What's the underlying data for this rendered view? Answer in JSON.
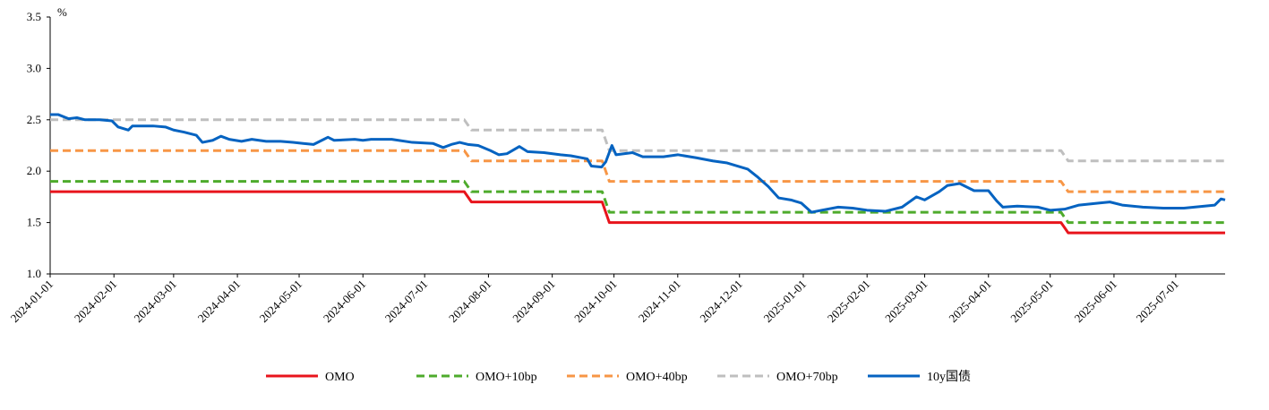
{
  "chart_data": {
    "type": "line",
    "ylabel": "%",
    "ylim": [
      1.0,
      3.5
    ],
    "yticks": [
      "1.0",
      "1.5",
      "2.0",
      "2.5",
      "3.0",
      "3.5"
    ],
    "xlim": [
      "2024-01-01",
      "2025-07-25"
    ],
    "xticks": [
      "2024-01-01",
      "2024-02-01",
      "2024-03-01",
      "2024-04-01",
      "2024-05-01",
      "2024-06-01",
      "2024-07-01",
      "2024-08-01",
      "2024-09-01",
      "2024-10-01",
      "2024-11-01",
      "2024-12-01",
      "2025-01-01",
      "2025-02-01",
      "2025-03-01",
      "2025-04-01",
      "2025-05-01",
      "2025-06-01",
      "2025-07-01"
    ],
    "grid": false,
    "legend": "bottom",
    "series": [
      {
        "name": "OMO",
        "color": "#e8141c",
        "style": "solid",
        "steps": [
          [
            "2024-01-01",
            1.8
          ],
          [
            "2024-07-22",
            1.7
          ],
          [
            "2024-09-27",
            1.5
          ],
          [
            "2025-05-08",
            1.4
          ],
          [
            "2025-07-25",
            1.4
          ]
        ]
      },
      {
        "name": "OMO+10bp",
        "color": "#4eab2c",
        "style": "dashed",
        "steps": [
          [
            "2024-01-01",
            1.9
          ],
          [
            "2024-07-22",
            1.8
          ],
          [
            "2024-09-27",
            1.6
          ],
          [
            "2025-05-08",
            1.5
          ],
          [
            "2025-07-25",
            1.5
          ]
        ]
      },
      {
        "name": "OMO+40bp",
        "color": "#f79646",
        "style": "dashed",
        "steps": [
          [
            "2024-01-01",
            2.2
          ],
          [
            "2024-07-22",
            2.1
          ],
          [
            "2024-09-27",
            1.9
          ],
          [
            "2025-05-08",
            1.8
          ],
          [
            "2025-07-25",
            1.8
          ]
        ]
      },
      {
        "name": "OMO+70bp",
        "color": "#bfbfbf",
        "style": "dashed",
        "steps": [
          [
            "2024-01-01",
            2.5
          ],
          [
            "2024-07-22",
            2.4
          ],
          [
            "2024-09-27",
            2.2
          ],
          [
            "2025-05-08",
            2.1
          ],
          [
            "2025-07-25",
            2.1
          ]
        ]
      },
      {
        "name": "10y国债",
        "color": "#0563c1",
        "style": "solid",
        "points": [
          [
            "2024-01-01",
            2.55
          ],
          [
            "2024-01-05",
            2.55
          ],
          [
            "2024-01-10",
            2.51
          ],
          [
            "2024-01-14",
            2.52
          ],
          [
            "2024-01-18",
            2.5
          ],
          [
            "2024-01-25",
            2.5
          ],
          [
            "2024-01-31",
            2.49
          ],
          [
            "2024-02-03",
            2.43
          ],
          [
            "2024-02-08",
            2.4
          ],
          [
            "2024-02-10",
            2.44
          ],
          [
            "2024-02-20",
            2.44
          ],
          [
            "2024-02-26",
            2.43
          ],
          [
            "2024-03-01",
            2.4
          ],
          [
            "2024-03-06",
            2.38
          ],
          [
            "2024-03-12",
            2.35
          ],
          [
            "2024-03-15",
            2.28
          ],
          [
            "2024-03-20",
            2.3
          ],
          [
            "2024-03-24",
            2.34
          ],
          [
            "2024-03-28",
            2.31
          ],
          [
            "2024-04-03",
            2.29
          ],
          [
            "2024-04-08",
            2.31
          ],
          [
            "2024-04-15",
            2.29
          ],
          [
            "2024-04-22",
            2.29
          ],
          [
            "2024-04-28",
            2.28
          ],
          [
            "2024-05-03",
            2.27
          ],
          [
            "2024-05-08",
            2.26
          ],
          [
            "2024-05-13",
            2.31
          ],
          [
            "2024-05-15",
            2.33
          ],
          [
            "2024-05-18",
            2.3
          ],
          [
            "2024-05-28",
            2.31
          ],
          [
            "2024-06-01",
            2.3
          ],
          [
            "2024-06-05",
            2.31
          ],
          [
            "2024-06-15",
            2.31
          ],
          [
            "2024-06-25",
            2.28
          ],
          [
            "2024-07-05",
            2.27
          ],
          [
            "2024-07-10",
            2.23
          ],
          [
            "2024-07-14",
            2.26
          ],
          [
            "2024-07-18",
            2.28
          ],
          [
            "2024-07-22",
            2.26
          ],
          [
            "2024-07-27",
            2.25
          ],
          [
            "2024-08-02",
            2.2
          ],
          [
            "2024-08-06",
            2.16
          ],
          [
            "2024-08-10",
            2.17
          ],
          [
            "2024-08-16",
            2.24
          ],
          [
            "2024-08-20",
            2.19
          ],
          [
            "2024-08-28",
            2.18
          ],
          [
            "2024-09-05",
            2.16
          ],
          [
            "2024-09-10",
            2.15
          ],
          [
            "2024-09-18",
            2.12
          ],
          [
            "2024-09-20",
            2.05
          ],
          [
            "2024-09-25",
            2.04
          ],
          [
            "2024-09-27",
            2.09
          ],
          [
            "2024-09-30",
            2.25
          ],
          [
            "2024-10-02",
            2.16
          ],
          [
            "2024-10-10",
            2.18
          ],
          [
            "2024-10-15",
            2.14
          ],
          [
            "2024-10-25",
            2.14
          ],
          [
            "2024-11-01",
            2.16
          ],
          [
            "2024-11-10",
            2.13
          ],
          [
            "2024-11-18",
            2.1
          ],
          [
            "2024-11-25",
            2.08
          ],
          [
            "2024-12-05",
            2.02
          ],
          [
            "2024-12-10",
            1.94
          ],
          [
            "2024-12-15",
            1.85
          ],
          [
            "2024-12-20",
            1.74
          ],
          [
            "2024-12-26",
            1.72
          ],
          [
            "2024-12-31",
            1.69
          ],
          [
            "2025-01-05",
            1.6
          ],
          [
            "2025-01-10",
            1.62
          ],
          [
            "2025-01-18",
            1.65
          ],
          [
            "2025-01-25",
            1.64
          ],
          [
            "2025-02-01",
            1.62
          ],
          [
            "2025-02-10",
            1.61
          ],
          [
            "2025-02-18",
            1.65
          ],
          [
            "2025-02-25",
            1.75
          ],
          [
            "2025-03-01",
            1.72
          ],
          [
            "2025-03-08",
            1.8
          ],
          [
            "2025-03-12",
            1.86
          ],
          [
            "2025-03-18",
            1.88
          ],
          [
            "2025-03-25",
            1.81
          ],
          [
            "2025-04-01",
            1.81
          ],
          [
            "2025-04-05",
            1.71
          ],
          [
            "2025-04-08",
            1.65
          ],
          [
            "2025-04-15",
            1.66
          ],
          [
            "2025-04-25",
            1.65
          ],
          [
            "2025-05-01",
            1.62
          ],
          [
            "2025-05-08",
            1.63
          ],
          [
            "2025-05-15",
            1.67
          ],
          [
            "2025-05-25",
            1.69
          ],
          [
            "2025-05-30",
            1.7
          ],
          [
            "2025-06-05",
            1.67
          ],
          [
            "2025-06-15",
            1.65
          ],
          [
            "2025-06-25",
            1.64
          ],
          [
            "2025-07-05",
            1.64
          ],
          [
            "2025-07-15",
            1.66
          ],
          [
            "2025-07-20",
            1.67
          ],
          [
            "2025-07-23",
            1.73
          ],
          [
            "2025-07-25",
            1.72
          ]
        ]
      }
    ]
  }
}
